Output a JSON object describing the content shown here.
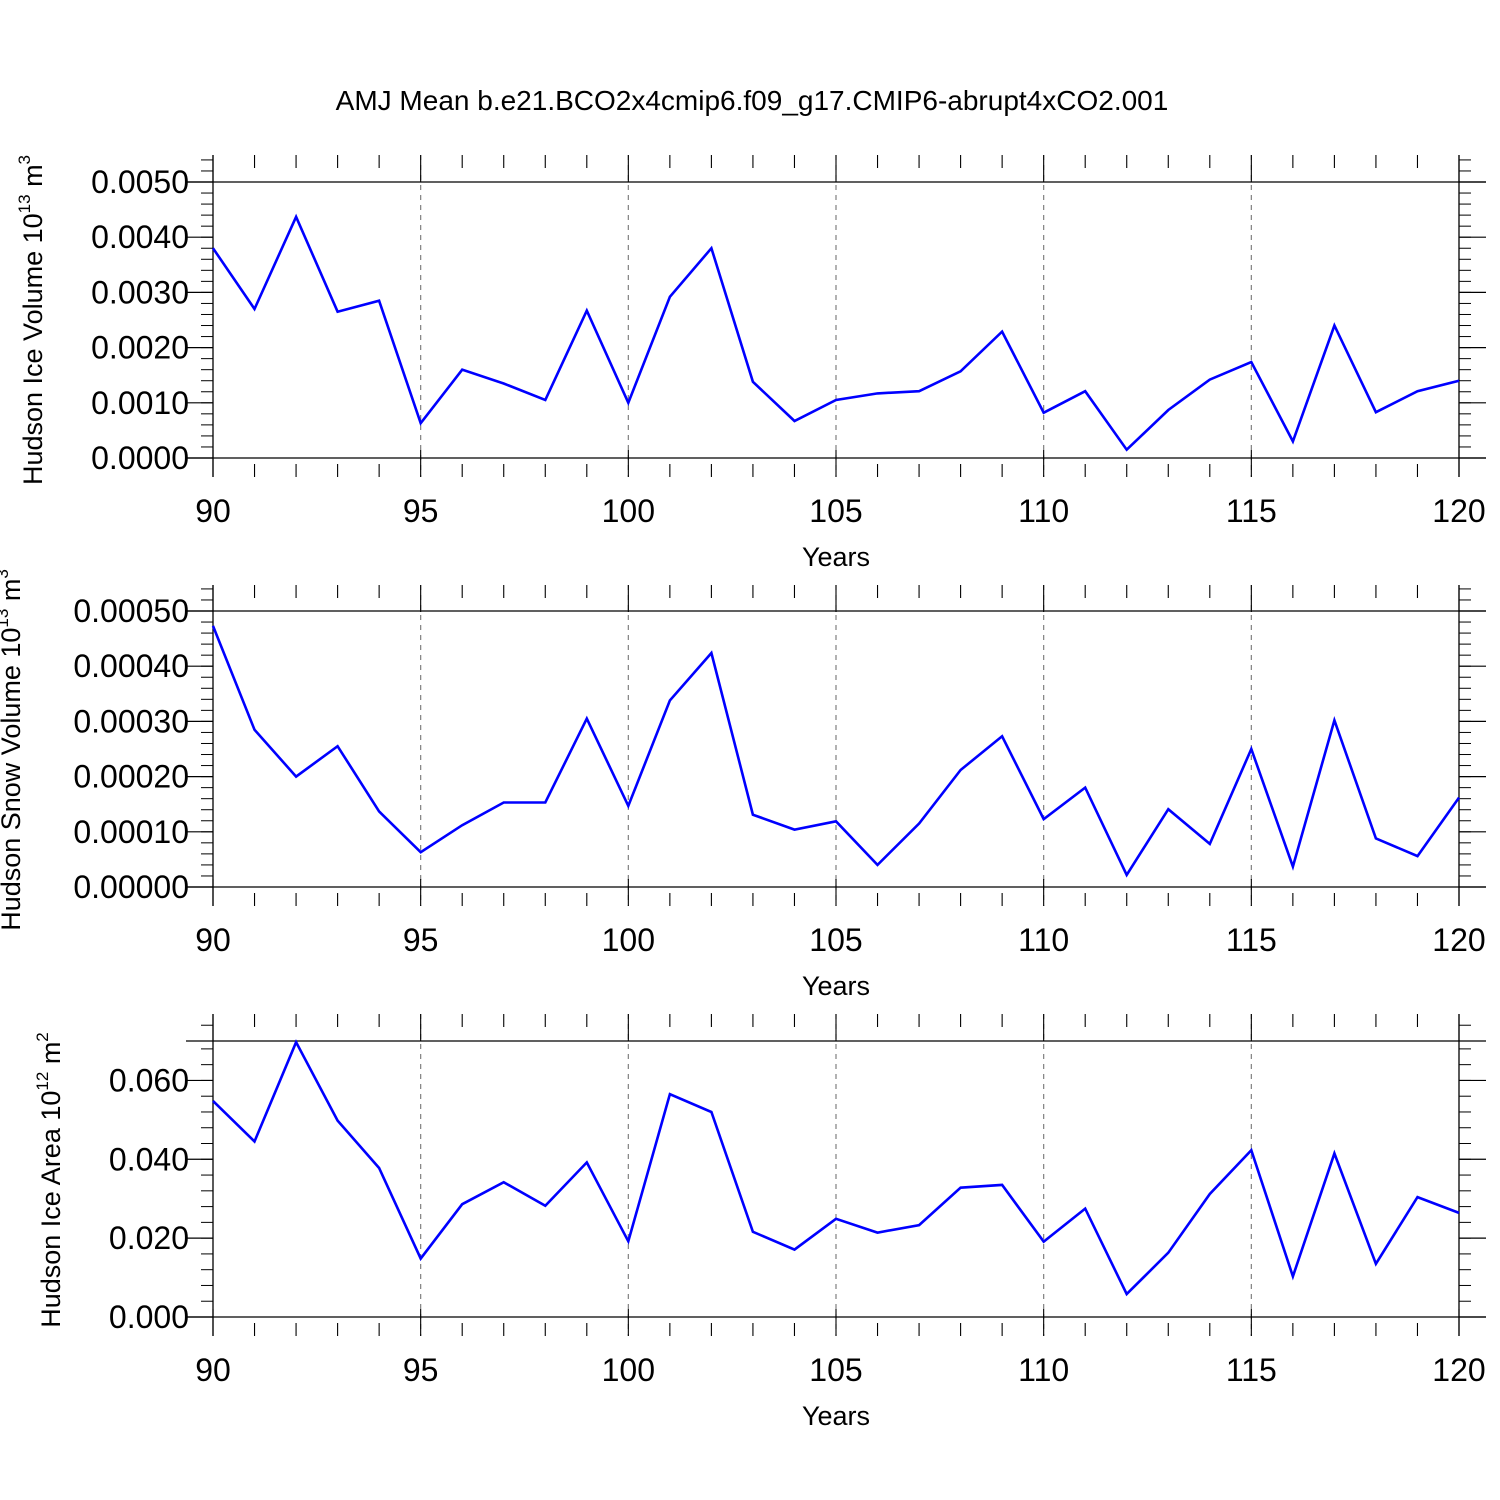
{
  "figure": {
    "title": "AMJ Mean b.e21.BCO2x4cmip6.f09_g17.CMIP6-abrupt4xCO2.001",
    "line_color": "#0000ff",
    "grid_color": "#808080"
  },
  "chart_data": [
    {
      "type": "line",
      "xlabel": "Years",
      "ylabel": {
        "base": "Hudson Ice Volume 10",
        "exp": "13",
        "unit": " m",
        "unit_exp": "3"
      },
      "xlim": [
        90,
        120
      ],
      "ylim": [
        0,
        0.005
      ],
      "xticks": [
        90,
        95,
        100,
        105,
        110,
        115,
        120
      ],
      "xtick_labels": [
        "90",
        "95",
        "100",
        "105",
        "110",
        "115",
        "120"
      ],
      "yticks": [
        0,
        0.001,
        0.002,
        0.003,
        0.004,
        0.005
      ],
      "ytick_labels": [
        "0.0000",
        "0.0010",
        "0.0020",
        "0.0030",
        "0.0040",
        "0.0050"
      ],
      "grid": "vertical-dashed",
      "x": [
        90,
        91,
        92,
        93,
        94,
        95,
        96,
        97,
        98,
        99,
        100,
        101,
        102,
        103,
        104,
        105,
        106,
        107,
        108,
        109,
        110,
        111,
        112,
        113,
        114,
        115,
        116,
        117,
        118,
        119,
        120
      ],
      "values": [
        0.0038,
        0.0027,
        0.00437,
        0.00265,
        0.00285,
        0.00063,
        0.0016,
        0.00135,
        0.00105,
        0.00267,
        0.001,
        0.00292,
        0.0038,
        0.00138,
        0.00067,
        0.00105,
        0.00117,
        0.00121,
        0.00157,
        0.00229,
        0.00082,
        0.00121,
        0.00015,
        0.00087,
        0.00142,
        0.00174,
        0.0003,
        0.0024,
        0.00083,
        0.00121,
        0.0014
      ]
    },
    {
      "type": "line",
      "xlabel": "Years",
      "ylabel": {
        "base": "Hudson Snow Volume 10",
        "exp": "13",
        "unit": " m",
        "unit_exp": "3"
      },
      "xlim": [
        90,
        120
      ],
      "ylim": [
        0,
        0.0005
      ],
      "xticks": [
        90,
        95,
        100,
        105,
        110,
        115,
        120
      ],
      "xtick_labels": [
        "90",
        "95",
        "100",
        "105",
        "110",
        "115",
        "120"
      ],
      "yticks": [
        0,
        0.0001,
        0.0002,
        0.0003,
        0.0004,
        0.0005
      ],
      "ytick_labels": [
        "0.00000",
        "0.00010",
        "0.00020",
        "0.00030",
        "0.00040",
        "0.00050"
      ],
      "grid": "vertical-dashed",
      "x": [
        90,
        91,
        92,
        93,
        94,
        95,
        96,
        97,
        98,
        99,
        100,
        101,
        102,
        103,
        104,
        105,
        106,
        107,
        108,
        109,
        110,
        111,
        112,
        113,
        114,
        115,
        116,
        117,
        118,
        119,
        120
      ],
      "values": [
        0.000473,
        0.000285,
        0.0002,
        0.000255,
        0.000137,
        6.3e-05,
        0.000112,
        0.000153,
        0.000153,
        0.000305,
        0.000147,
        0.000338,
        0.000424,
        0.000131,
        0.000104,
        0.000119,
        4e-05,
        0.000115,
        0.000212,
        0.000273,
        0.000123,
        0.00018,
        2.2e-05,
        0.000141,
        7.8e-05,
        0.00025,
        3.7e-05,
        0.000302,
        8.8e-05,
        5.6e-05,
        0.000162
      ]
    },
    {
      "type": "line",
      "xlabel": "Years",
      "ylabel": {
        "base": "Hudson Ice Area 10",
        "exp": "12",
        "unit": " m",
        "unit_exp": "2"
      },
      "xlim": [
        90,
        120
      ],
      "ylim": [
        0,
        0.07
      ],
      "xticks": [
        90,
        95,
        100,
        105,
        110,
        115,
        120
      ],
      "xtick_labels": [
        "90",
        "95",
        "100",
        "105",
        "110",
        "115",
        "120"
      ],
      "yticks": [
        0,
        0.02,
        0.04,
        0.06
      ],
      "ytick_labels": [
        "0.000",
        "0.020",
        "0.040",
        "0.060"
      ],
      "grid": "vertical-dashed",
      "x": [
        90,
        91,
        92,
        93,
        94,
        95,
        96,
        97,
        98,
        99,
        100,
        101,
        102,
        103,
        104,
        105,
        106,
        107,
        108,
        109,
        110,
        111,
        112,
        113,
        114,
        115,
        116,
        117,
        118,
        119,
        120
      ],
      "values": [
        0.0548,
        0.0445,
        0.0697,
        0.0498,
        0.0378,
        0.0148,
        0.0286,
        0.0342,
        0.0282,
        0.0392,
        0.0192,
        0.0565,
        0.052,
        0.0216,
        0.0171,
        0.0249,
        0.0214,
        0.0233,
        0.0328,
        0.0335,
        0.0191,
        0.0275,
        0.0058,
        0.0163,
        0.0312,
        0.0423,
        0.0103,
        0.0415,
        0.0135,
        0.0304,
        0.0264
      ]
    }
  ]
}
